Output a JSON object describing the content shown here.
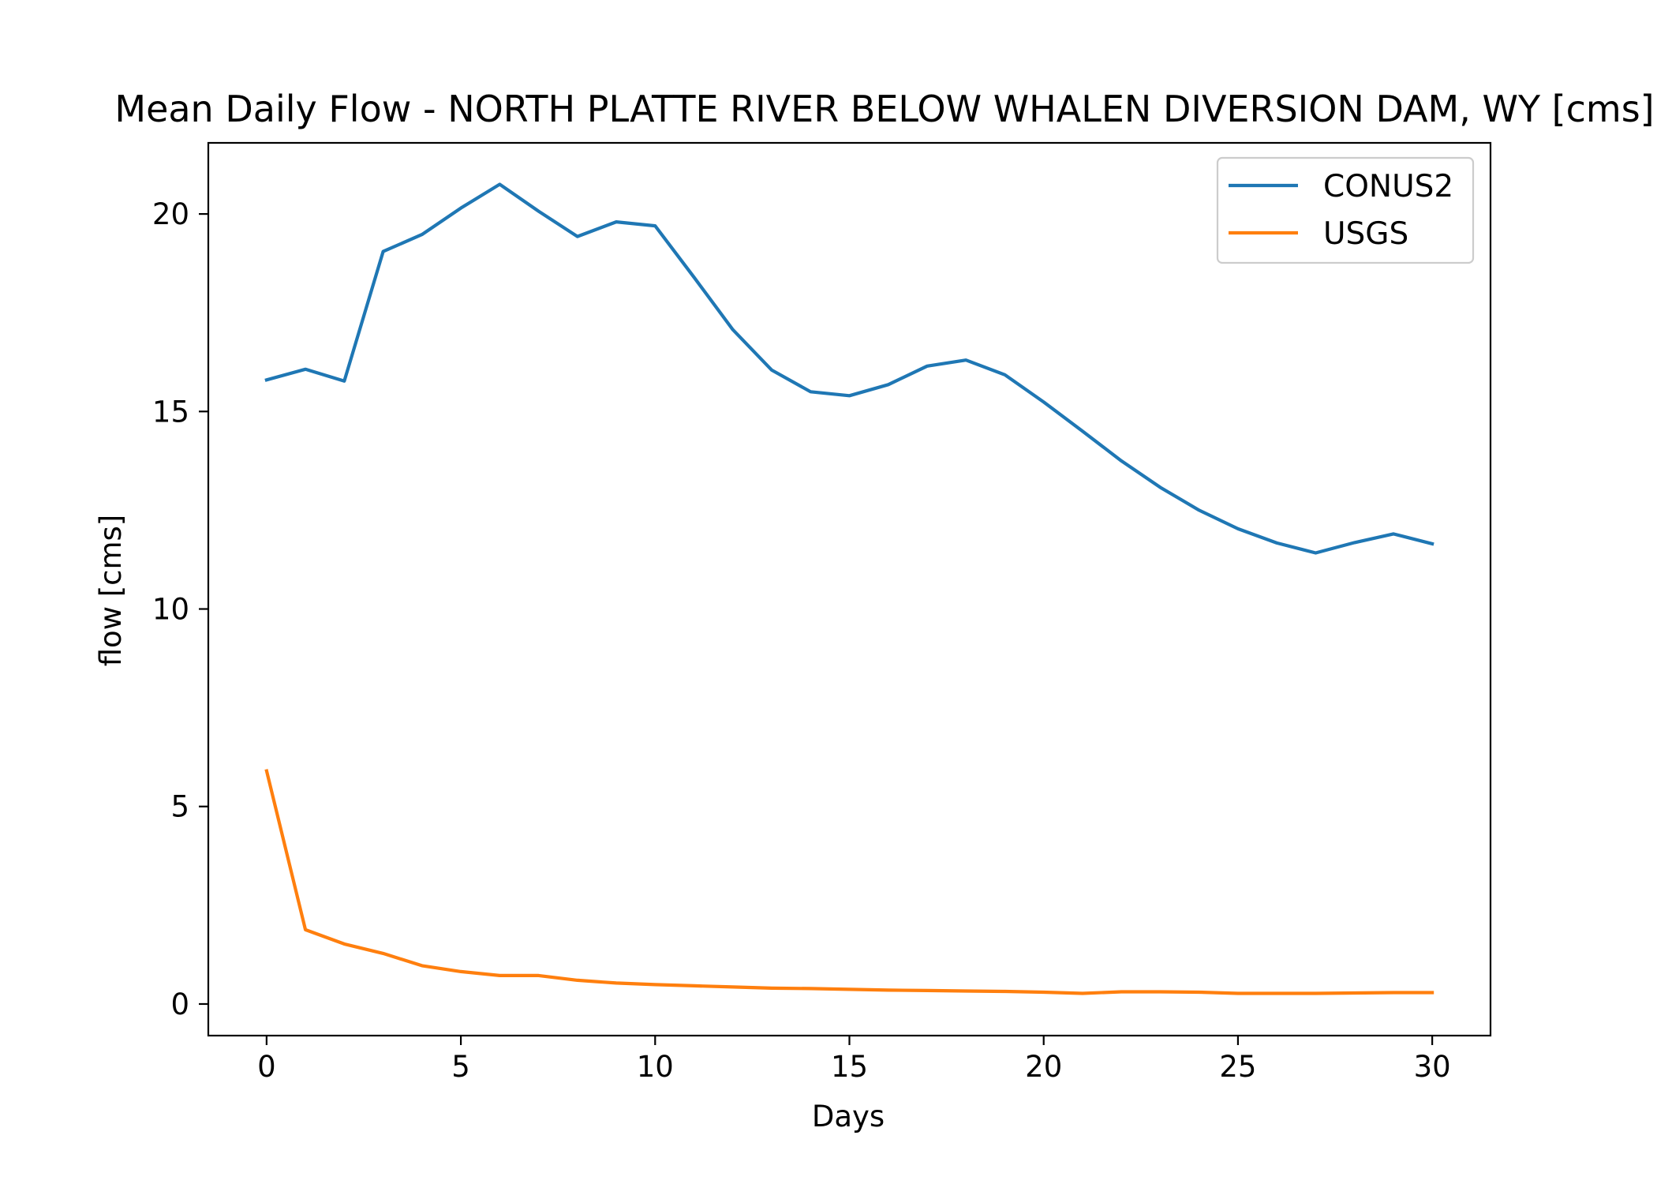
{
  "chart_data": {
    "type": "line",
    "title": "Mean Daily Flow - NORTH PLATTE RIVER BELOW WHALEN DIVERSION DAM, WY [cms]",
    "xlabel": "Days",
    "ylabel": "flow [cms]",
    "xlim": [
      -1.5,
      31.5
    ],
    "ylim": [
      -0.8,
      21.8
    ],
    "xticks": [
      0,
      5,
      10,
      15,
      20,
      25,
      30
    ],
    "yticks": [
      0,
      5,
      10,
      15,
      20
    ],
    "grid": false,
    "legend_position": "upper right",
    "x": [
      0,
      1,
      2,
      3,
      4,
      5,
      6,
      7,
      8,
      9,
      10,
      11,
      12,
      13,
      14,
      15,
      16,
      17,
      18,
      19,
      20,
      21,
      22,
      23,
      24,
      25,
      26,
      27,
      28,
      29,
      30
    ],
    "series": [
      {
        "name": "CONUS2",
        "color": "#1f77b4",
        "values": [
          15.8,
          16.07,
          15.77,
          19.05,
          19.48,
          20.15,
          20.75,
          20.07,
          19.43,
          19.8,
          19.7,
          18.4,
          17.07,
          16.05,
          15.5,
          15.4,
          15.68,
          16.15,
          16.3,
          15.93,
          15.24,
          14.5,
          13.75,
          13.08,
          12.5,
          12.03,
          11.67,
          11.42,
          11.68,
          11.9,
          11.65
        ]
      },
      {
        "name": "USGS",
        "color": "#ff7f0e",
        "values": [
          5.9,
          1.88,
          1.52,
          1.28,
          0.97,
          0.82,
          0.72,
          0.72,
          0.6,
          0.53,
          0.49,
          0.46,
          0.43,
          0.4,
          0.39,
          0.37,
          0.35,
          0.34,
          0.33,
          0.32,
          0.3,
          0.27,
          0.31,
          0.31,
          0.3,
          0.27,
          0.27,
          0.27,
          0.28,
          0.29,
          0.29
        ]
      }
    ]
  }
}
